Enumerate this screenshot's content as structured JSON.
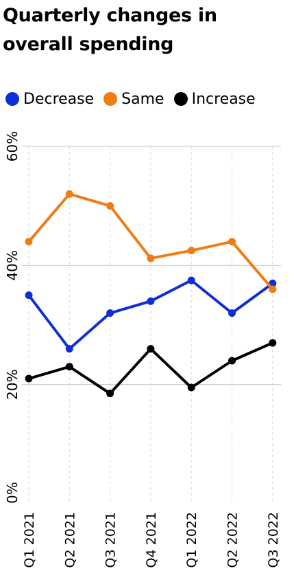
{
  "title_line1": "Quarterly changes in",
  "title_line2": "overall spending",
  "chart_data": {
    "type": "line",
    "title": "Quarterly changes in overall spending",
    "x": [
      "Q1 2021",
      "Q2 2021",
      "Q3 2021",
      "Q4 2021",
      "Q1 2022",
      "Q2 2022",
      "Q3 2022"
    ],
    "series": [
      {
        "name": "Decrease",
        "color": "#0f2fd6",
        "values": [
          35,
          26,
          32,
          34,
          37.5,
          32,
          37
        ]
      },
      {
        "name": "Same",
        "color": "#f07c14",
        "values": [
          44,
          52,
          50,
          41.2,
          42.5,
          44,
          36
        ]
      },
      {
        "name": "Increase",
        "color": "#000000",
        "values": [
          21,
          23,
          18.5,
          26,
          19.5,
          24,
          27
        ]
      }
    ],
    "yticks": [
      "0%",
      "20%",
      "40%",
      "60%"
    ],
    "ylim": [
      0,
      60
    ],
    "grid": "vertical dashed lines at each quarter",
    "legend": "top"
  }
}
